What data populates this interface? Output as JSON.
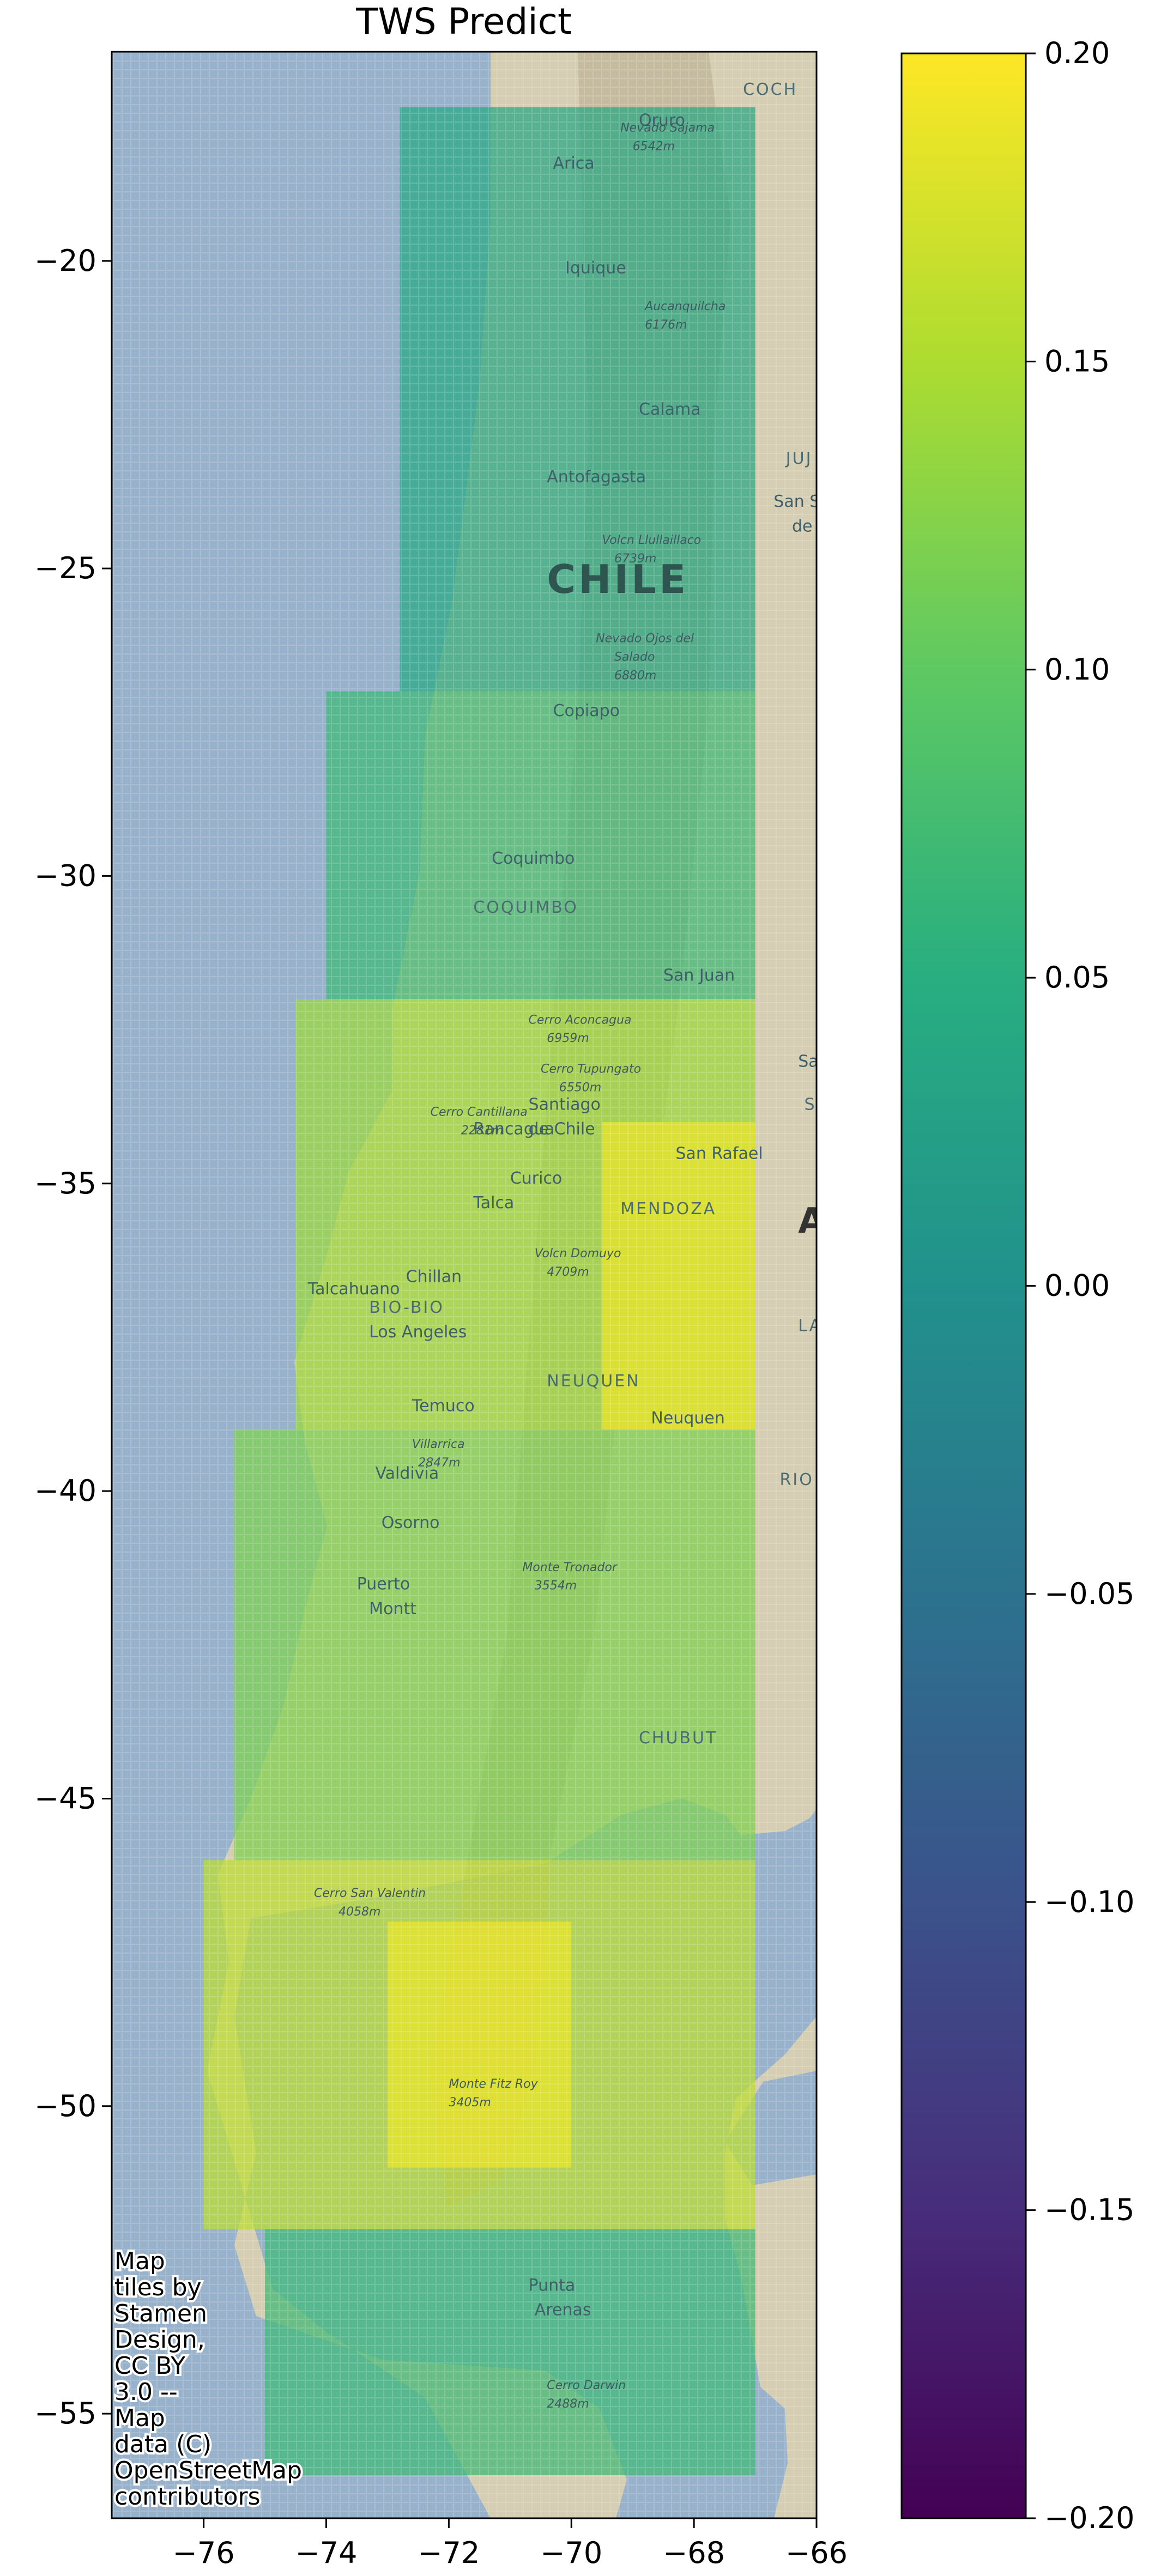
{
  "chart_data": {
    "type": "heatmap",
    "title": "TWS Predict",
    "xlabel": "",
    "ylabel": "",
    "xlim": [
      -77.5,
      -66
    ],
    "ylim": [
      -56.7,
      -16.6
    ],
    "x_ticks": [
      -76,
      -74,
      -72,
      -70,
      -68,
      -66
    ],
    "y_ticks": [
      -20,
      -25,
      -30,
      -35,
      -40,
      -45,
      -50,
      -55
    ],
    "colorbar": {
      "colormap": "viridis",
      "range": [
        -0.2,
        0.2
      ],
      "ticks": [
        0.2,
        0.15,
        0.1,
        0.05,
        0.0,
        -0.05,
        -0.1,
        -0.15,
        -0.2
      ]
    },
    "grid": false,
    "gridded_values_summary": [
      {
        "lat_range": [
          -27,
          -17.5
        ],
        "lon_range": [
          -72.8,
          -67
        ],
        "value": 0.04
      },
      {
        "lat_range": [
          -32,
          -27
        ],
        "lon_range": [
          -74,
          -67
        ],
        "value": 0.07
      },
      {
        "lat_range": [
          -39,
          -32
        ],
        "lon_range": [
          -74.5,
          -67
        ],
        "value": 0.14
      },
      {
        "lat_range": [
          -39,
          -34
        ],
        "lon_range": [
          -69.5,
          -67
        ],
        "value": 0.19
      },
      {
        "lat_range": [
          -46,
          -39
        ],
        "lon_range": [
          -75.5,
          -67
        ],
        "value": 0.12
      },
      {
        "lat_range": [
          -52,
          -46
        ],
        "lon_range": [
          -76,
          -67
        ],
        "value": 0.16
      },
      {
        "lat_range": [
          -51,
          -47
        ],
        "lon_range": [
          -73,
          -70
        ],
        "value": 0.19
      },
      {
        "lat_range": [
          -56,
          -52
        ],
        "lon_range": [
          -75,
          -67
        ],
        "value": 0.07
      }
    ]
  },
  "map_labels": {
    "cities": [
      {
        "name": "Oruro",
        "lon": -68.9,
        "lat": -17.8
      },
      {
        "name": "Arica",
        "lon": -70.3,
        "lat": -18.5
      },
      {
        "name": "Iquique",
        "lon": -70.1,
        "lat": -20.2
      },
      {
        "name": "Calama",
        "lon": -68.9,
        "lat": -22.5
      },
      {
        "name": "Antofagasta",
        "lon": -70.4,
        "lat": -23.6
      },
      {
        "name": "Copiapo",
        "lon": -70.3,
        "lat": -27.4
      },
      {
        "name": "Coquimbo",
        "lon": -71.3,
        "lat": -29.8
      },
      {
        "name": "San Juan",
        "lon": -68.5,
        "lat": -31.7
      },
      {
        "name": "Rancagua",
        "lon": -71.6,
        "lat": -34.2
      },
      {
        "name": "Curico",
        "lon": -71.0,
        "lat": -35.0
      },
      {
        "name": "San Rafael",
        "lon": -68.3,
        "lat": -34.6
      },
      {
        "name": "Talca",
        "lon": -71.6,
        "lat": -35.4
      },
      {
        "name": "Chillan",
        "lon": -72.7,
        "lat": -36.6
      },
      {
        "name": "Talcahuano",
        "lon": -74.3,
        "lat": -36.8
      },
      {
        "name": "Los Angeles",
        "lon": -73.3,
        "lat": -37.5
      },
      {
        "name": "Temuco",
        "lon": -72.6,
        "lat": -38.7
      },
      {
        "name": "Neuquen",
        "lon": -68.7,
        "lat": -38.9
      },
      {
        "name": "Valdivia",
        "lon": -73.2,
        "lat": -39.8
      },
      {
        "name": "Osorno",
        "lon": -73.1,
        "lat": -40.6
      },
      {
        "name": "Puerto",
        "lon": -73.5,
        "lat": -41.6
      },
      {
        "name": "Montt",
        "lon": -73.3,
        "lat": -42.0
      },
      {
        "name": "Santiago",
        "lon": -70.7,
        "lat": -33.8
      },
      {
        "name": "de Chile",
        "lon": -70.7,
        "lat": -34.2
      },
      {
        "name": "Punta",
        "lon": -70.7,
        "lat": -53.0
      },
      {
        "name": "Arenas",
        "lon": -70.6,
        "lat": -53.4
      },
      {
        "name": "San Salv",
        "lon": -66.7,
        "lat": -24.0
      },
      {
        "name": "de",
        "lon": -66.4,
        "lat": -24.4
      },
      {
        "name": "Sa",
        "lon": -66.3,
        "lat": -33.1
      }
    ],
    "regions": [
      {
        "name": "COCH",
        "lon": -67.2,
        "lat": -17.3
      },
      {
        "name": "JUJ",
        "lon": -66.5,
        "lat": -23.3
      },
      {
        "name": "COQUIMBO",
        "lon": -71.6,
        "lat": -30.6
      },
      {
        "name": "SAN",
        "lon": -66.2,
        "lat": -33.8
      },
      {
        "name": "MENDOZA",
        "lon": -69.2,
        "lat": -35.5
      },
      {
        "name": "LA P",
        "lon": -66.3,
        "lat": -37.4
      },
      {
        "name": "BIO-BIO",
        "lon": -73.3,
        "lat": -37.1
      },
      {
        "name": "NEUQUEN",
        "lon": -70.4,
        "lat": -38.3
      },
      {
        "name": "RIO NEG",
        "lon": -66.6,
        "lat": -39.9
      },
      {
        "name": "CHUBUT",
        "lon": -68.9,
        "lat": -44.1
      }
    ],
    "country": {
      "name": "CHILE",
      "lon": -70.4,
      "lat": -25.4
    },
    "country_partial": {
      "name": "A",
      "lon": -66.3,
      "lat": -35.8
    },
    "peaks": [
      {
        "name": "Nevado Sajama",
        "lon": -69.2,
        "lat": -17.9
      },
      {
        "name": "6542m",
        "lon": -69.0,
        "lat": -18.2
      },
      {
        "name": "Aucanquilcha",
        "lon": -68.8,
        "lat": -20.8
      },
      {
        "name": "6176m",
        "lon": -68.8,
        "lat": -21.1
      },
      {
        "name": "Volcn Llullaillaco",
        "lon": -69.5,
        "lat": -24.6
      },
      {
        "name": "6739m",
        "lon": -69.3,
        "lat": -24.9
      },
      {
        "name": "Nevado Ojos del",
        "lon": -69.6,
        "lat": -26.2
      },
      {
        "name": "Salado",
        "lon": -69.3,
        "lat": -26.5
      },
      {
        "name": "6880m",
        "lon": -69.3,
        "lat": -26.8
      },
      {
        "name": "Cerro Aconcagua",
        "lon": -70.7,
        "lat": -32.4
      },
      {
        "name": "6959m",
        "lon": -70.4,
        "lat": -32.7
      },
      {
        "name": "Cerro Tupungato",
        "lon": -70.5,
        "lat": -33.2
      },
      {
        "name": "6550m",
        "lon": -70.2,
        "lat": -33.5
      },
      {
        "name": "Cerro Cantillana",
        "lon": -72.3,
        "lat": -33.9
      },
      {
        "name": "2281m",
        "lon": -71.8,
        "lat": -34.2
      },
      {
        "name": "Volcn Domuyo",
        "lon": -70.6,
        "lat": -36.2
      },
      {
        "name": "4709m",
        "lon": -70.4,
        "lat": -36.5
      },
      {
        "name": "Villarrica",
        "lon": -72.6,
        "lat": -39.3
      },
      {
        "name": "2847m",
        "lon": -72.5,
        "lat": -39.6
      },
      {
        "name": "Monte Tronador",
        "lon": -70.8,
        "lat": -41.3
      },
      {
        "name": "3554m",
        "lon": -70.6,
        "lat": -41.6
      },
      {
        "name": "Cerro San Valentin",
        "lon": -74.2,
        "lat": -46.6
      },
      {
        "name": "4058m",
        "lon": -73.8,
        "lat": -46.9
      },
      {
        "name": "Monte Fitz Roy",
        "lon": -72.0,
        "lat": -49.7
      },
      {
        "name": "3405m",
        "lon": -72.0,
        "lat": -50.0
      },
      {
        "name": "Cerro Darwin",
        "lon": -70.4,
        "lat": -54.6
      },
      {
        "name": "2488m",
        "lon": -70.4,
        "lat": -54.9
      }
    ]
  },
  "attribution": [
    "Map",
    "tiles by",
    "Stamen",
    "Design,",
    "CC BY",
    "3.0 --",
    "Map",
    "data (C)",
    "OpenStreetMap",
    "contributors"
  ],
  "colors": {
    "ocean": "#98b2cb",
    "land": "#d6ceb2",
    "andes": "#b8ac90",
    "axis": "#000000"
  }
}
